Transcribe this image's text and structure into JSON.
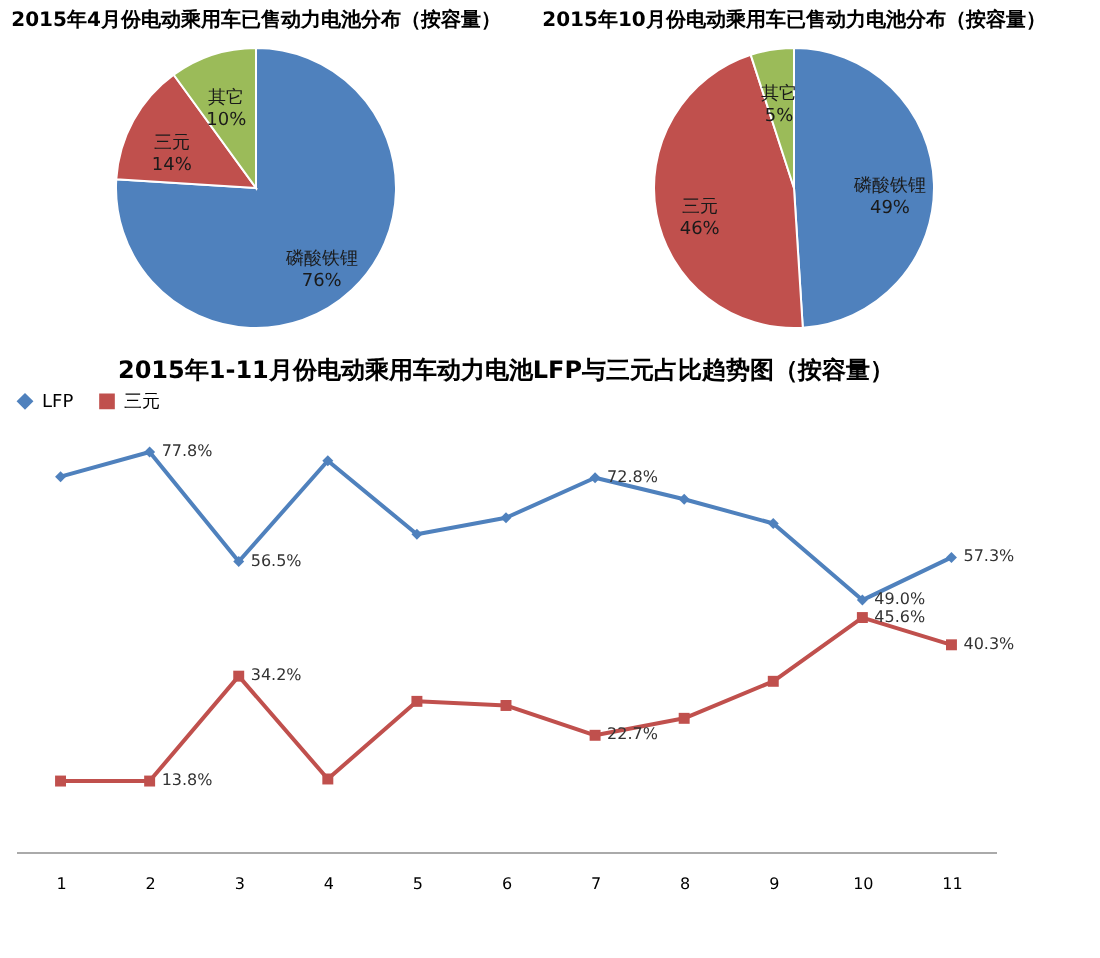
{
  "chart_data": [
    {
      "type": "pie",
      "title": "2015年4月份电动乘用车已售动力电池分布（按容量）",
      "categories": [
        "磷酸铁锂",
        "三元",
        "其它"
      ],
      "values": [
        76,
        14,
        10
      ],
      "value_labels": [
        "76%",
        "14%",
        "10%"
      ],
      "colors": [
        "#4f81bd",
        "#c0504d",
        "#9bbb59"
      ]
    },
    {
      "type": "pie",
      "title": "2015年10月份电动乘用车已售动力电池分布（按容量）",
      "categories": [
        "磷酸铁锂",
        "三元",
        "其它"
      ],
      "values": [
        49,
        46,
        5
      ],
      "value_labels": [
        "49%",
        "46%",
        "5%"
      ],
      "colors": [
        "#4f81bd",
        "#c0504d",
        "#9bbb59"
      ]
    },
    {
      "type": "line",
      "title": "2015年1-11月份电动乘用车动力电池LFP与三元占比趋势图（按容量）",
      "categories": [
        "1",
        "2",
        "3",
        "4",
        "5",
        "6",
        "7",
        "8",
        "9",
        "10",
        "11"
      ],
      "tick_labels": "x",
      "grid": false,
      "legend": "top",
      "series": [
        {
          "name": "LFP",
          "color": "#4f81bd",
          "marker": "diamond",
          "values": [
            73.0,
            77.8,
            56.5,
            76.1,
            61.8,
            65.0,
            72.8,
            68.6,
            63.9,
            49.0,
            57.3
          ],
          "value_labels": [
            null,
            "77.8%",
            "56.5%",
            null,
            null,
            null,
            "72.8%",
            null,
            null,
            "49.0%",
            "57.3%"
          ]
        },
        {
          "name": "三元",
          "color": "#c0504d",
          "marker": "square",
          "values": [
            13.8,
            13.8,
            34.2,
            14.2,
            29.3,
            28.5,
            22.7,
            26.0,
            33.2,
            45.6,
            40.3
          ],
          "value_labels": [
            null,
            "13.8%",
            "34.2%",
            null,
            null,
            null,
            "22.7%",
            null,
            null,
            "45.6%",
            "40.3%"
          ]
        }
      ]
    }
  ]
}
